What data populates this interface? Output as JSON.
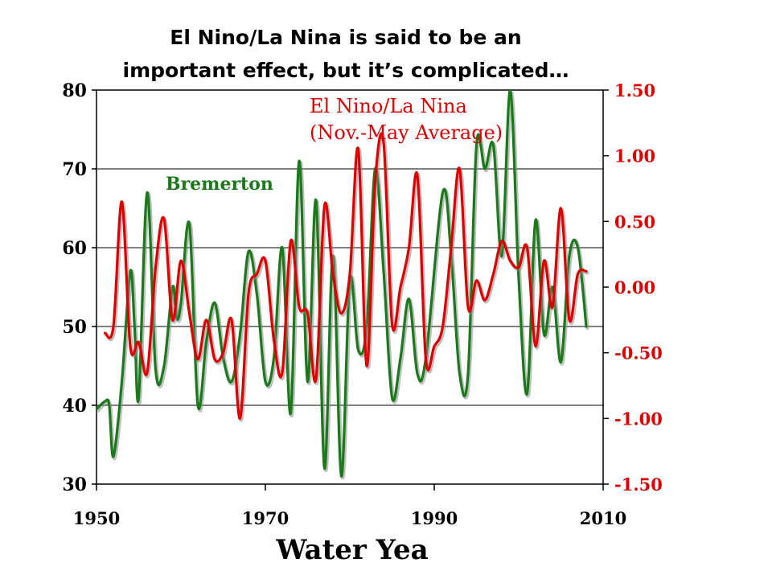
{
  "title_lines": [
    "El Nino/La Nina is said to be an",
    "important effect, but it’s complicated…"
  ],
  "chart_data": {
    "type": "line",
    "title": "El Nino/La Nina is said to be an important effect, but it’s complicated…",
    "xlabel": "Water Yea",
    "xlim": [
      1950,
      2010
    ],
    "x_ticks": [
      "1950",
      "1970",
      "1990",
      "2010"
    ],
    "y_left": {
      "lim": [
        30,
        80
      ],
      "ticks": [
        "30",
        "40",
        "50",
        "60",
        "70",
        "80"
      ],
      "color": "#000000"
    },
    "y_right": {
      "lim": [
        -1.5,
        1.5
      ],
      "ticks": [
        "-1.50",
        "-1.00",
        "-0.50",
        "0.00",
        "0.50",
        "1.00",
        "1.50"
      ],
      "color": "#e00000"
    },
    "grid": "horizontal",
    "series": [
      {
        "name": "Bremerton",
        "axis": "left",
        "color": "#1a7a1a",
        "points": [
          [
            1950,
            39.5
          ],
          [
            1951,
            40.5
          ],
          [
            1951.5,
            40.0
          ],
          [
            1952,
            33.5
          ],
          [
            1953,
            43
          ],
          [
            1954,
            57
          ],
          [
            1954.5,
            50
          ],
          [
            1955,
            41
          ],
          [
            1956,
            67
          ],
          [
            1957,
            44.5
          ],
          [
            1958,
            45
          ],
          [
            1959,
            55
          ],
          [
            1959.5,
            51
          ],
          [
            1960,
            53
          ],
          [
            1961,
            63
          ],
          [
            1962,
            40
          ],
          [
            1963,
            48
          ],
          [
            1964,
            53
          ],
          [
            1965,
            46
          ],
          [
            1966,
            43
          ],
          [
            1967,
            49
          ],
          [
            1968,
            59.5
          ],
          [
            1969,
            54
          ],
          [
            1970,
            43
          ],
          [
            1971,
            46
          ],
          [
            1972,
            60
          ],
          [
            1973,
            39
          ],
          [
            1974,
            71
          ],
          [
            1975,
            43
          ],
          [
            1976,
            66
          ],
          [
            1977,
            32
          ],
          [
            1978,
            59
          ],
          [
            1979,
            31
          ],
          [
            1980,
            56
          ],
          [
            1981,
            47
          ],
          [
            1982,
            50
          ],
          [
            1983,
            70
          ],
          [
            1984,
            57
          ],
          [
            1985,
            41
          ],
          [
            1986,
            46
          ],
          [
            1987,
            53.5
          ],
          [
            1988,
            44
          ],
          [
            1989,
            46
          ],
          [
            1991,
            67
          ],
          [
            1992,
            59
          ],
          [
            1993,
            44
          ],
          [
            1994,
            44
          ],
          [
            1995,
            73
          ],
          [
            1996,
            70
          ],
          [
            1997,
            73
          ],
          [
            1998,
            59
          ],
          [
            1999,
            80
          ],
          [
            2000,
            56
          ],
          [
            2001,
            41.5
          ],
          [
            2002,
            63.5
          ],
          [
            2003,
            49
          ],
          [
            2004,
            55
          ],
          [
            2005,
            45.5
          ],
          [
            2006,
            59
          ],
          [
            2007,
            60
          ],
          [
            2008,
            50
          ]
        ]
      },
      {
        "name": "El Nino/La Nina",
        "label_lines": [
          "El Nino/La Nina",
          "(Nov.-May Average)"
        ],
        "axis": "right",
        "color": "#e00000",
        "points": [
          [
            1951,
            -0.35
          ],
          [
            1952,
            -0.3
          ],
          [
            1953,
            0.65
          ],
          [
            1954,
            -0.45
          ],
          [
            1955,
            -0.42
          ],
          [
            1956,
            -0.65
          ],
          [
            1957,
            0.15
          ],
          [
            1958,
            0.52
          ],
          [
            1959,
            -0.25
          ],
          [
            1960,
            0.2
          ],
          [
            1961,
            -0.2
          ],
          [
            1962,
            -0.55
          ],
          [
            1963,
            -0.25
          ],
          [
            1964,
            -0.55
          ],
          [
            1965,
            -0.5
          ],
          [
            1966,
            -0.25
          ],
          [
            1967,
            -1.0
          ],
          [
            1968,
            -0.05
          ],
          [
            1969,
            0.1
          ],
          [
            1970,
            0.2
          ],
          [
            1971,
            -0.4
          ],
          [
            1972,
            -0.65
          ],
          [
            1973,
            0.35
          ],
          [
            1974,
            -0.15
          ],
          [
            1975,
            -0.2
          ],
          [
            1976,
            -0.7
          ],
          [
            1977,
            0.62
          ],
          [
            1978,
            0.1
          ],
          [
            1979,
            -0.2
          ],
          [
            1980,
            0.1
          ],
          [
            1981,
            1.05
          ],
          [
            1982,
            -0.6
          ],
          [
            1983,
            0.8
          ],
          [
            1984,
            1.1
          ],
          [
            1985,
            -0.28
          ],
          [
            1986,
            0.0
          ],
          [
            1987,
            0.3
          ],
          [
            1988,
            0.85
          ],
          [
            1989,
            -0.55
          ],
          [
            1990,
            -0.45
          ],
          [
            1991,
            -0.3
          ],
          [
            1992,
            0.3
          ],
          [
            1993,
            0.9
          ],
          [
            1994,
            -0.15
          ],
          [
            1995,
            0.05
          ],
          [
            1996,
            -0.1
          ],
          [
            1997,
            0.1
          ],
          [
            1998,
            0.35
          ],
          [
            1999,
            0.2
          ],
          [
            2000,
            0.15
          ],
          [
            2001,
            0.3
          ],
          [
            2002,
            -0.45
          ],
          [
            2003,
            0.2
          ],
          [
            2004,
            -0.15
          ],
          [
            2005,
            0.6
          ],
          [
            2006,
            -0.25
          ],
          [
            2007,
            0.1
          ],
          [
            2008,
            0.12
          ]
        ]
      }
    ]
  }
}
